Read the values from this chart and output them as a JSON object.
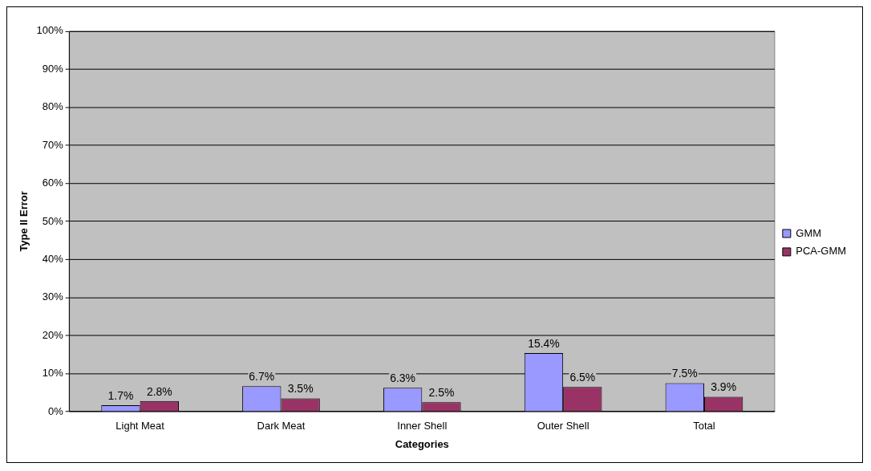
{
  "chart_data": {
    "type": "bar",
    "xlabel": "Categories",
    "ylabel": "Type II Error",
    "categories": [
      "Light Meat",
      "Dark Meat",
      "Inner Shell",
      "Outer Shell",
      "Total"
    ],
    "series": [
      {
        "name": "GMM",
        "color": "#9999ff",
        "values": [
          1.7,
          6.7,
          6.3,
          15.4,
          7.5
        ],
        "value_labels": [
          "1.7%",
          "6.7%",
          "6.3%",
          "15.4%",
          "7.5%"
        ]
      },
      {
        "name": "PCA-GMM",
        "color": "#993366",
        "values": [
          2.8,
          3.5,
          2.5,
          6.5,
          3.9
        ],
        "value_labels": [
          "2.8%",
          "3.5%",
          "2.5%",
          "6.5%",
          "3.9%"
        ]
      }
    ],
    "ylim": [
      0,
      100
    ],
    "yticks": [
      {
        "value": 0,
        "label": "0%"
      },
      {
        "value": 10,
        "label": "10%"
      },
      {
        "value": 20,
        "label": "20%"
      },
      {
        "value": 30,
        "label": "30%"
      },
      {
        "value": 40,
        "label": "40%"
      },
      {
        "value": 50,
        "label": "50%"
      },
      {
        "value": 60,
        "label": "60%"
      },
      {
        "value": 70,
        "label": "70%"
      },
      {
        "value": 80,
        "label": "80%"
      },
      {
        "value": 90,
        "label": "90%"
      },
      {
        "value": 100,
        "label": "100%"
      }
    ],
    "grid": "y",
    "legend": "right"
  }
}
